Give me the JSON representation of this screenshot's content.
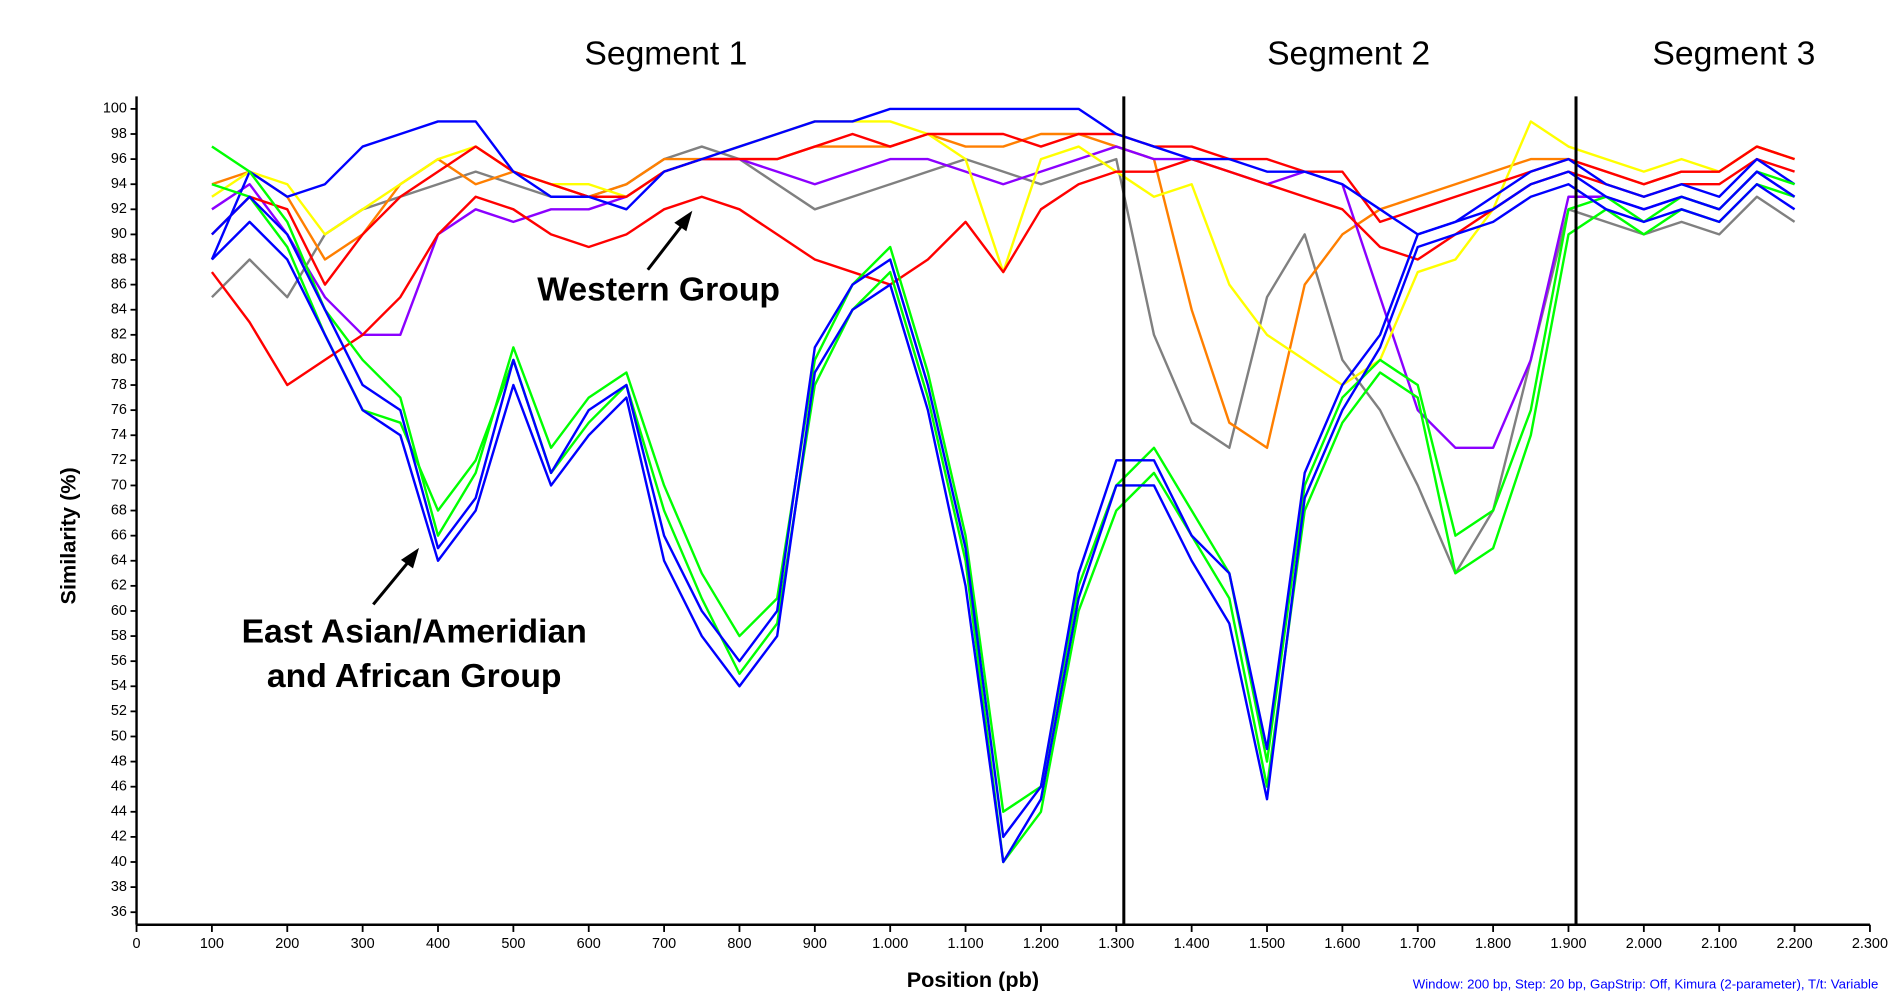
{
  "chart_data": {
    "type": "line",
    "segment_labels": [
      "Segment 1",
      "Segment 2",
      "Segment 3"
    ],
    "annotations": [
      "Western Group",
      "East Asian/Ameridian",
      "and African Group"
    ],
    "xlabel": "Position (pb)",
    "ylabel": "Similarity (%)",
    "footnote": "Window: 200 bp, Step: 20 bp, GapStrip: Off, Kimura (2-parameter), T/t: Variable",
    "vlines": [
      1310,
      1910
    ],
    "xlim": [
      0,
      2300
    ],
    "ylim": [
      35,
      101
    ],
    "xticks": [
      0,
      100,
      200,
      300,
      400,
      500,
      600,
      700,
      800,
      900,
      {
        "value": 1000,
        "label": "1.000"
      },
      {
        "value": 1100,
        "label": "1.100"
      },
      {
        "value": 1200,
        "label": "1.200"
      },
      {
        "value": 1300,
        "label": "1.300"
      },
      {
        "value": 1400,
        "label": "1.400"
      },
      {
        "value": 1500,
        "label": "1.500"
      },
      {
        "value": 1600,
        "label": "1.600"
      },
      {
        "value": 1700,
        "label": "1.700"
      },
      {
        "value": 1800,
        "label": "1.800"
      },
      {
        "value": 1900,
        "label": "1.900"
      },
      {
        "value": 2000,
        "label": "2.000"
      },
      {
        "value": 2100,
        "label": "2.100"
      },
      {
        "value": 2200,
        "label": "2.200"
      },
      {
        "value": 2300,
        "label": "2.300"
      }
    ],
    "yticks": [
      36,
      38,
      40,
      42,
      44,
      46,
      48,
      50,
      52,
      54,
      56,
      58,
      60,
      62,
      64,
      66,
      68,
      70,
      72,
      74,
      76,
      78,
      80,
      82,
      84,
      86,
      88,
      90,
      92,
      94,
      96,
      98,
      100
    ],
    "x": [
      100,
      150,
      200,
      250,
      300,
      350,
      400,
      450,
      500,
      550,
      600,
      650,
      700,
      750,
      800,
      850,
      900,
      950,
      1000,
      1050,
      1100,
      1150,
      1200,
      1250,
      1300,
      1350,
      1400,
      1450,
      1500,
      1550,
      1600,
      1650,
      1700,
      1750,
      1800,
      1850,
      1900,
      1950,
      2000,
      2050,
      2100,
      2150,
      2200
    ],
    "series": [
      {
        "color": "#808080",
        "values": [
          85,
          88,
          85,
          90,
          92,
          93,
          94,
          95,
          94,
          93,
          93,
          94,
          96,
          97,
          96,
          94,
          92,
          93,
          94,
          95,
          96,
          95,
          94,
          95,
          96,
          82,
          75,
          73,
          85,
          90,
          80,
          76,
          70,
          63,
          68,
          80,
          92,
          91,
          90,
          91,
          90,
          93,
          91
        ]
      },
      {
        "color": "#ff7f00",
        "values": [
          94,
          95,
          93,
          88,
          90,
          94,
          96,
          94,
          95,
          94,
          93,
          94,
          96,
          96,
          96,
          96,
          97,
          97,
          97,
          98,
          97,
          97,
          98,
          98,
          97,
          96,
          84,
          75,
          73,
          86,
          90,
          92,
          93,
          94,
          95,
          96,
          96,
          95,
          94,
          95,
          95,
          97,
          96
        ]
      },
      {
        "color": "#8b00ff",
        "values": [
          92,
          94,
          90,
          85,
          82,
          82,
          90,
          92,
          91,
          92,
          92,
          93,
          95,
          96,
          96,
          95,
          94,
          95,
          96,
          96,
          95,
          94,
          95,
          96,
          97,
          96,
          96,
          95,
          94,
          95,
          94,
          85,
          76,
          73,
          73,
          80,
          93,
          93,
          92,
          93,
          92,
          95,
          93
        ]
      },
      {
        "color": "#ffff00",
        "values": [
          93,
          95,
          94,
          90,
          92,
          94,
          96,
          97,
          95,
          94,
          94,
          93,
          95,
          96,
          97,
          98,
          99,
          99,
          99,
          98,
          96,
          87,
          96,
          97,
          95,
          93,
          94,
          86,
          82,
          80,
          78,
          80,
          87,
          88,
          92,
          99,
          97,
          96,
          95,
          96,
          95,
          97,
          96
        ]
      },
      {
        "color": "#ff0000",
        "values": [
          90,
          93,
          92,
          86,
          90,
          93,
          95,
          97,
          95,
          94,
          93,
          93,
          95,
          96,
          96,
          96,
          97,
          98,
          97,
          98,
          98,
          98,
          97,
          98,
          98,
          97,
          97,
          96,
          96,
          95,
          95,
          91,
          92,
          93,
          94,
          95,
          96,
          95,
          94,
          95,
          95,
          97,
          96
        ]
      },
      {
        "color": "#ff0000",
        "values": [
          87,
          83,
          78,
          80,
          82,
          85,
          90,
          93,
          92,
          90,
          89,
          90,
          92,
          93,
          92,
          90,
          88,
          87,
          86,
          88,
          91,
          87,
          92,
          94,
          95,
          95,
          96,
          95,
          94,
          93,
          92,
          89,
          88,
          90,
          92,
          94,
          95,
          94,
          93,
          94,
          94,
          96,
          95
        ]
      },
      {
        "color": "#0000ff",
        "values": [
          88,
          95,
          93,
          94,
          97,
          98,
          99,
          99,
          95,
          93,
          93,
          92,
          95,
          96,
          97,
          98,
          99,
          99,
          100,
          100,
          100,
          100,
          100,
          100,
          98,
          97,
          96,
          96,
          95,
          95,
          94,
          92,
          90,
          91,
          93,
          95,
          96,
          94,
          93,
          94,
          93,
          96,
          94
        ]
      },
      {
        "color": "#00ff00",
        "values": [
          97,
          95,
          91,
          84,
          80,
          77,
          66,
          71,
          81,
          73,
          77,
          79,
          70,
          63,
          58,
          61,
          80,
          86,
          89,
          79,
          66,
          44,
          46,
          62,
          70,
          73,
          68,
          63,
          48,
          70,
          77,
          80,
          78,
          66,
          68,
          76,
          92,
          93,
          91,
          93,
          92,
          95,
          94
        ]
      },
      {
        "color": "#00ff00",
        "values": [
          94,
          93,
          89,
          82,
          76,
          75,
          68,
          72,
          80,
          71,
          75,
          78,
          68,
          61,
          55,
          59,
          78,
          84,
          87,
          77,
          64,
          40,
          44,
          60,
          68,
          71,
          66,
          61,
          46,
          68,
          75,
          79,
          77,
          63,
          65,
          74,
          90,
          92,
          90,
          92,
          91,
          94,
          93
        ]
      },
      {
        "color": "#0000ff",
        "values": [
          90,
          93,
          90,
          84,
          78,
          76,
          65,
          69,
          80,
          71,
          76,
          78,
          66,
          60,
          56,
          60,
          81,
          86,
          88,
          78,
          65,
          42,
          46,
          63,
          72,
          72,
          66,
          63,
          49,
          71,
          78,
          82,
          90,
          91,
          92,
          94,
          95,
          93,
          92,
          93,
          92,
          95,
          93
        ]
      },
      {
        "color": "#0000ff",
        "values": [
          88,
          91,
          88,
          82,
          76,
          74,
          64,
          68,
          78,
          70,
          74,
          77,
          64,
          58,
          54,
          58,
          79,
          84,
          86,
          76,
          62,
          40,
          45,
          61,
          70,
          70,
          64,
          59,
          45,
          69,
          76,
          81,
          89,
          90,
          91,
          93,
          94,
          92,
          91,
          92,
          91,
          94,
          92
        ]
      }
    ]
  }
}
